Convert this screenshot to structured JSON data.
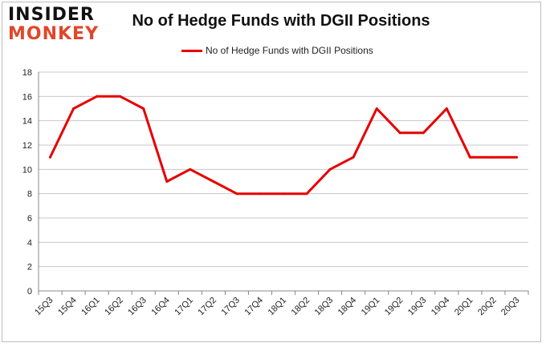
{
  "logo": {
    "line1": "INSIDER",
    "line2": "MONKEY"
  },
  "colors": {
    "series": "#e60000",
    "grid": "#c8c8c8",
    "logo_accent": "#e2462a"
  },
  "chart_data": {
    "type": "line",
    "title": "No of Hedge Funds with DGII Positions",
    "xlabel": "",
    "ylabel": "",
    "ylim": [
      0,
      18
    ],
    "yticks": [
      "0",
      "2",
      "4",
      "6",
      "8",
      "10",
      "12",
      "14",
      "16",
      "18"
    ],
    "categories": [
      "15Q3",
      "15Q4",
      "16Q1",
      "16Q2",
      "16Q3",
      "16Q4",
      "17Q1",
      "17Q2",
      "17Q3",
      "17Q4",
      "18Q1",
      "18Q2",
      "18Q3",
      "18Q4",
      "19Q1",
      "19Q2",
      "19Q3",
      "19Q4",
      "20Q1",
      "20Q2",
      "20Q3"
    ],
    "grid": true,
    "legend_position": "top-center",
    "series": [
      {
        "name": "No of Hedge Funds with DGII Positions",
        "values": [
          11,
          15,
          16,
          16,
          15,
          9,
          10,
          9,
          8,
          8,
          8,
          8,
          10,
          11,
          15,
          13,
          13,
          15,
          11,
          11,
          11
        ]
      }
    ]
  }
}
